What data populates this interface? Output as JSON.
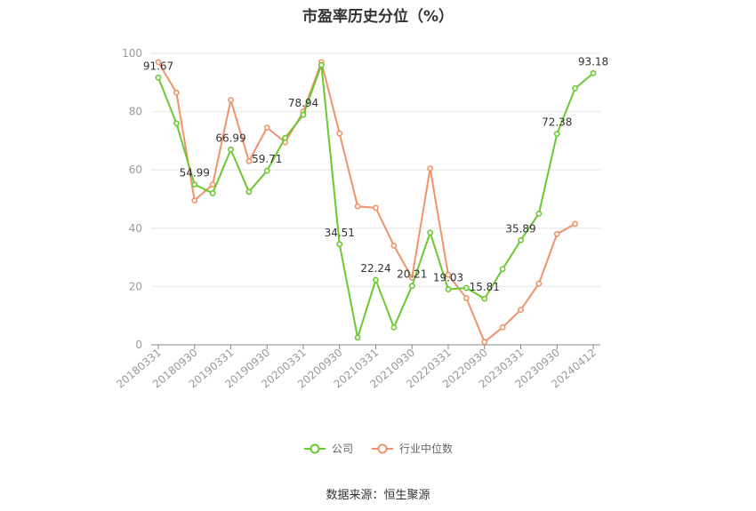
{
  "title": "市盈率历史分位（%）",
  "source": "数据来源：恒生聚源",
  "colors": {
    "company": "#6cc831",
    "industry": "#f0936a",
    "grid": "#e6e6e6",
    "axis": "#999999"
  },
  "chart_data": {
    "type": "line",
    "title": "市盈率历史分位（%）",
    "ylim": [
      0,
      100
    ],
    "yticks": [
      0,
      20,
      40,
      60,
      80,
      100
    ],
    "grid": true,
    "legend_position": "bottom",
    "x": [
      "20180331",
      "20180630",
      "20180930",
      "20181231",
      "20190331",
      "20190630",
      "20190930",
      "20191231",
      "20200331",
      "20200630",
      "20200930",
      "20201231",
      "20210331",
      "20210630",
      "20210930",
      "20211231",
      "20220331",
      "20220630",
      "20220930",
      "20221231",
      "20230331",
      "20230630",
      "20230930",
      "20231231",
      "20240412"
    ],
    "x_tick_labels": [
      "20180331",
      "20180930",
      "20190331",
      "20190930",
      "20200331",
      "20200930",
      "20210331",
      "20210930",
      "20220331",
      "20220930",
      "20230331",
      "20230930",
      "20240412"
    ],
    "series": [
      {
        "name": "公司",
        "values": [
          91.67,
          76,
          54.99,
          52,
          66.99,
          52.5,
          59.71,
          71,
          78.94,
          96,
          34.51,
          2.5,
          22.24,
          6,
          20.21,
          38.5,
          19.03,
          19.5,
          15.81,
          26,
          35.89,
          45,
          72.38,
          88,
          93.18
        ],
        "labels": {
          "0": "91.67",
          "2": "54.99",
          "4": "66.99",
          "6": "59.71",
          "8": "78.94",
          "10": "34.51",
          "12": "22.24",
          "14": "20.21",
          "16": "19.03",
          "18": "15.81",
          "20": "35.89",
          "22": "72.38",
          "24": "93.18"
        }
      },
      {
        "name": "行业中位数",
        "values": [
          97,
          86.5,
          49.5,
          55,
          84,
          63,
          74.5,
          69.5,
          80,
          97,
          72.5,
          47.5,
          47,
          34,
          23,
          60.5,
          24,
          16,
          1,
          6,
          12,
          21,
          38,
          41.5,
          null
        ]
      }
    ]
  }
}
